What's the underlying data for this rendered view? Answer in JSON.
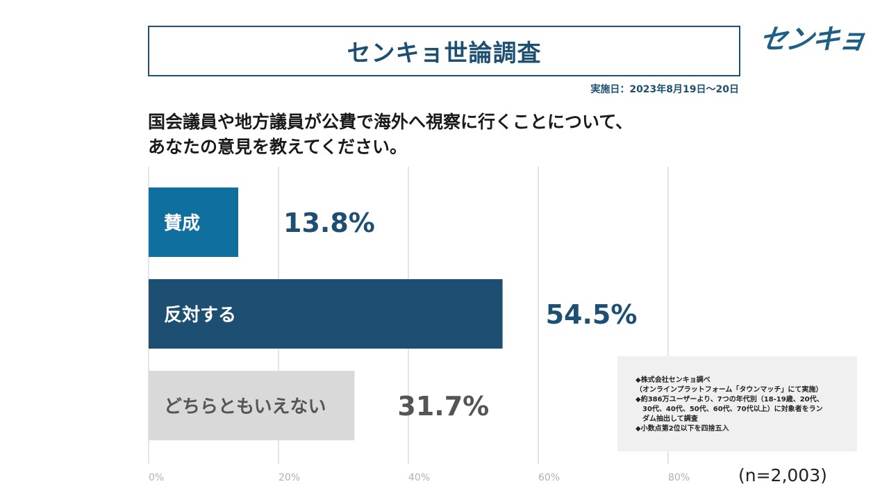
{
  "header": {
    "title": "センキョ世論調査",
    "logo": "センキョ",
    "date": "実施日：2023年8月19日～20日"
  },
  "question": {
    "line1": "国会議員や地方議員が公費で海外へ視察に行くことについて、",
    "line2": "あなたの意見を教えてください。"
  },
  "chart_data": {
    "type": "bar",
    "orientation": "horizontal",
    "categories": [
      "賛成",
      "反対する",
      "どちらともいえない"
    ],
    "values": [
      13.8,
      54.5,
      31.7
    ],
    "value_labels": [
      "13.8%",
      "54.5%",
      "31.7%"
    ],
    "colors": [
      "#0f6f9e",
      "#1d4f72",
      "#d9d9d9"
    ],
    "label_colors": [
      "#ffffff",
      "#ffffff",
      "#555555"
    ],
    "value_label_colors": [
      "#1d4f72",
      "#1d4f72",
      "#555555"
    ],
    "xlim": [
      0,
      100
    ],
    "x_ticks": [
      0,
      20,
      40,
      60,
      80
    ],
    "x_tick_labels": [
      "0%",
      "20%",
      "40%",
      "60%",
      "80%"
    ],
    "grid": true
  },
  "notes": [
    "◆株式会社センキョ調べ",
    "（オンラインプラットフォーム「タウンマッチ」にて実施）",
    "◆約386万ユーザーより、7つの年代別（18-19歳、20代、",
    "　30代、40代、50代、60代、70代以上）に対象者をラン",
    "　ダム抽出して調査",
    "◆小数点第2位以下を四捨五入"
  ],
  "sample_size": "(n=2,003)"
}
